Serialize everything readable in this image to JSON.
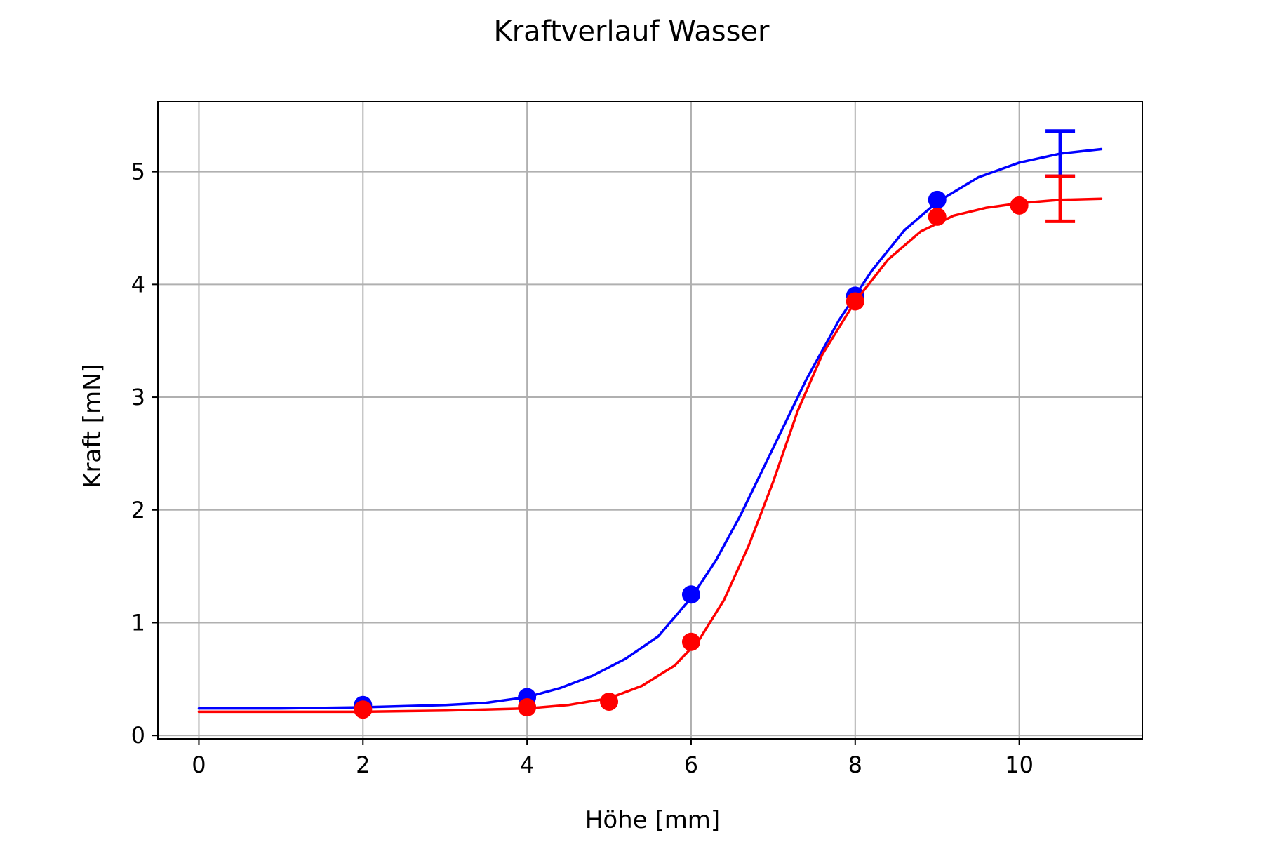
{
  "chart_data": {
    "type": "line",
    "title": "Kraftverlauf Wasser",
    "xlabel": "Höhe [mm]",
    "ylabel": "Kraft [mN]",
    "xlim": [
      -0.5,
      11.5
    ],
    "ylim": [
      -0.03,
      5.62
    ],
    "xticks": [
      0,
      2,
      4,
      6,
      8,
      10
    ],
    "yticks": [
      0,
      1,
      2,
      3,
      4,
      5
    ],
    "grid": true,
    "series": [
      {
        "color": "#0000ff",
        "points": [
          {
            "x": 2,
            "y": 0.27
          },
          {
            "x": 4,
            "y": 0.34
          },
          {
            "x": 6,
            "y": 1.25
          },
          {
            "x": 8,
            "y": 3.9
          },
          {
            "x": 9,
            "y": 4.75
          }
        ],
        "fit": [
          {
            "x": 0,
            "y": 0.24
          },
          {
            "x": 1,
            "y": 0.24
          },
          {
            "x": 2,
            "y": 0.25
          },
          {
            "x": 3,
            "y": 0.27
          },
          {
            "x": 3.5,
            "y": 0.29
          },
          {
            "x": 4,
            "y": 0.34
          },
          {
            "x": 4.4,
            "y": 0.42
          },
          {
            "x": 4.8,
            "y": 0.53
          },
          {
            "x": 5.2,
            "y": 0.68
          },
          {
            "x": 5.6,
            "y": 0.88
          },
          {
            "x": 6,
            "y": 1.22
          },
          {
            "x": 6.3,
            "y": 1.55
          },
          {
            "x": 6.6,
            "y": 1.95
          },
          {
            "x": 7,
            "y": 2.55
          },
          {
            "x": 7.4,
            "y": 3.15
          },
          {
            "x": 7.8,
            "y": 3.68
          },
          {
            "x": 8.2,
            "y": 4.12
          },
          {
            "x": 8.6,
            "y": 4.48
          },
          {
            "x": 9,
            "y": 4.73
          },
          {
            "x": 9.5,
            "y": 4.95
          },
          {
            "x": 10,
            "y": 5.08
          },
          {
            "x": 10.5,
            "y": 5.16
          },
          {
            "x": 11,
            "y": 5.2
          }
        ],
        "errorbar": {
          "x": 10.5,
          "y": 5.16,
          "err": 0.2
        }
      },
      {
        "color": "#ff0000",
        "points": [
          {
            "x": 2,
            "y": 0.23
          },
          {
            "x": 4,
            "y": 0.25
          },
          {
            "x": 5,
            "y": 0.3
          },
          {
            "x": 6,
            "y": 0.83
          },
          {
            "x": 8,
            "y": 3.85
          },
          {
            "x": 9,
            "y": 4.6
          },
          {
            "x": 10,
            "y": 4.7
          }
        ],
        "fit": [
          {
            "x": 0,
            "y": 0.21
          },
          {
            "x": 1,
            "y": 0.21
          },
          {
            "x": 2,
            "y": 0.21
          },
          {
            "x": 3,
            "y": 0.22
          },
          {
            "x": 4,
            "y": 0.24
          },
          {
            "x": 4.5,
            "y": 0.27
          },
          {
            "x": 5,
            "y": 0.33
          },
          {
            "x": 5.4,
            "y": 0.44
          },
          {
            "x": 5.8,
            "y": 0.62
          },
          {
            "x": 6.1,
            "y": 0.85
          },
          {
            "x": 6.4,
            "y": 1.2
          },
          {
            "x": 6.7,
            "y": 1.68
          },
          {
            "x": 7,
            "y": 2.25
          },
          {
            "x": 7.3,
            "y": 2.88
          },
          {
            "x": 7.6,
            "y": 3.38
          },
          {
            "x": 8,
            "y": 3.85
          },
          {
            "x": 8.4,
            "y": 4.22
          },
          {
            "x": 8.8,
            "y": 4.47
          },
          {
            "x": 9.2,
            "y": 4.61
          },
          {
            "x": 9.6,
            "y": 4.68
          },
          {
            "x": 10,
            "y": 4.72
          },
          {
            "x": 10.5,
            "y": 4.75
          },
          {
            "x": 11,
            "y": 4.76
          }
        ],
        "errorbar": {
          "x": 10.5,
          "y": 4.76,
          "err": 0.2
        }
      }
    ]
  }
}
